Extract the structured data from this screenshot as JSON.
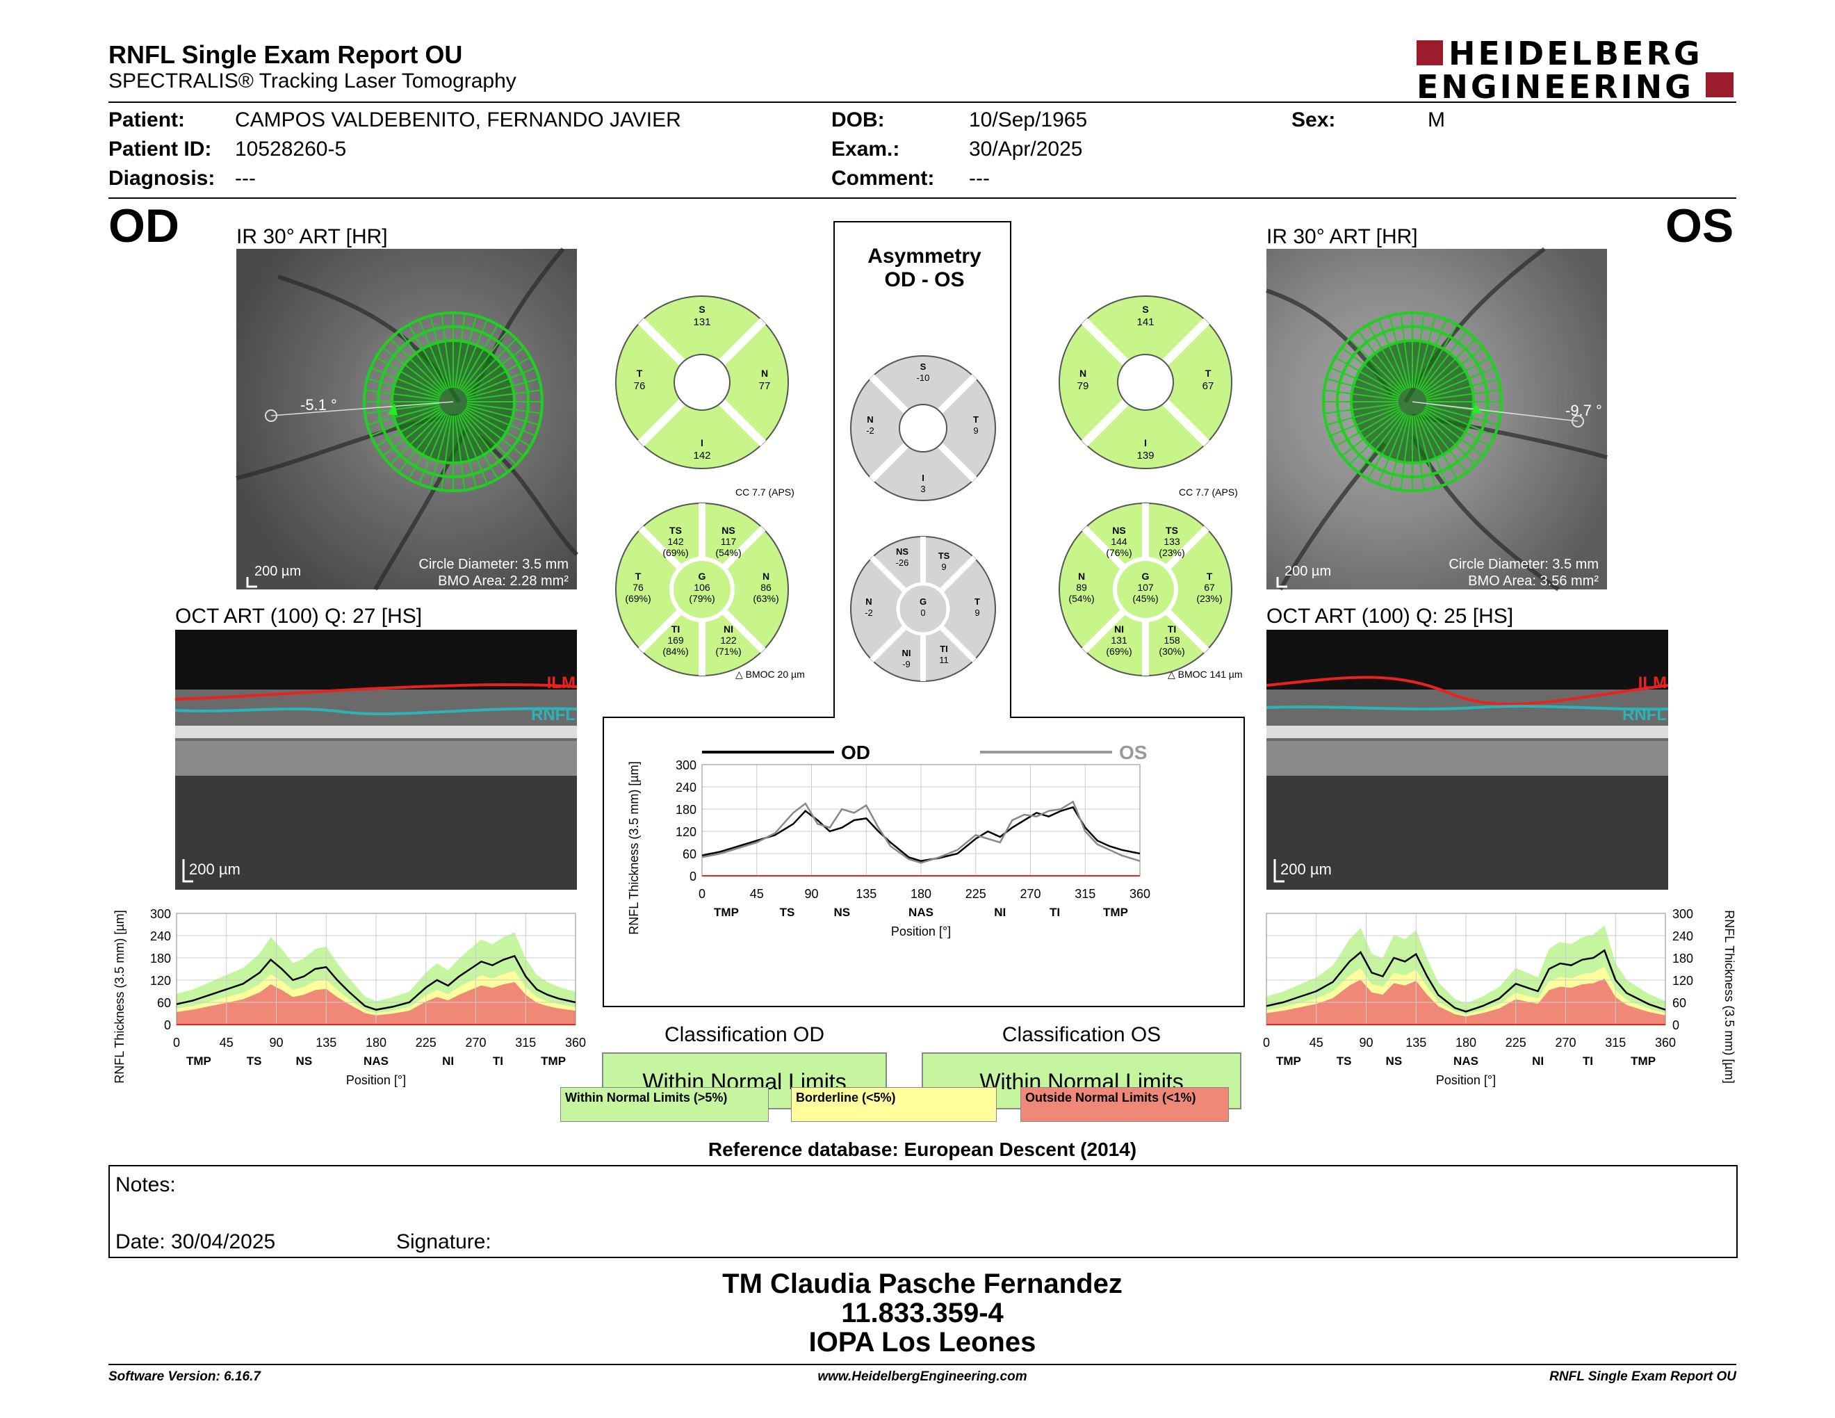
{
  "header": {
    "title": "RNFL Single Exam Report OU",
    "subtitle": "SPECTRALIS® Tracking Laser Tomography",
    "logo_line1": "HEIDELBERG",
    "logo_line2": "ENGINEERING"
  },
  "patient": {
    "patient_label": "Patient:",
    "patient_value": "CAMPOS VALDEBENITO, FERNANDO JAVIER",
    "id_label": "Patient ID:",
    "id_value": "10528260-5",
    "diag_label": "Diagnosis:",
    "diag_value": "---",
    "dob_label": "DOB:",
    "dob_value": "10/Sep/1965",
    "exam_label": "Exam.:",
    "exam_value": "30/Apr/2025",
    "comment_label": "Comment:",
    "comment_value": "---",
    "sex_label": "Sex:",
    "sex_value": "M"
  },
  "od": {
    "eye": "OD",
    "ir_label": "IR 30° ART [HR]",
    "angle": "-5.1 °",
    "scale": "200 µm",
    "circle_diameter": "Circle Diameter: 3.5 mm",
    "bmo_area": "BMO Area: 2.28 mm²",
    "oct_label": "OCT ART (100) Q: 27 [HS]",
    "oct_scale": "200 µm",
    "ilm": "ILM",
    "rnfl": "RNFL",
    "quad": {
      "S": "131",
      "T": "76",
      "N": "77",
      "I": "142"
    },
    "cc": "CC 7.7 (APS)",
    "bmoc": "BMOC 20 µm",
    "sectors": {
      "TS": [
        "TS",
        "142",
        "(69%)"
      ],
      "NS": [
        "NS",
        "117",
        "(54%)"
      ],
      "T": [
        "T",
        "76",
        "(69%)"
      ],
      "G": [
        "G",
        "106",
        "(79%)"
      ],
      "N": [
        "N",
        "86",
        "(63%)"
      ],
      "TI": [
        "TI",
        "169",
        "(84%)"
      ],
      "NI": [
        "NI",
        "122",
        "(71%)"
      ]
    },
    "classification_label": "Classification OD",
    "classification_value": "Within Normal Limits"
  },
  "os": {
    "eye": "OS",
    "ir_label": "IR 30° ART [HR]",
    "angle": "-9.7 °",
    "scale": "200 µm",
    "circle_diameter": "Circle Diameter: 3.5 mm",
    "bmo_area": "BMO Area: 3.56 mm²",
    "oct_label": "OCT ART (100) Q: 25 [HS]",
    "oct_scale": "200 µm",
    "ilm": "ILM",
    "rnfl": "RNFL",
    "quad": {
      "S": "141",
      "N": "79",
      "T": "67",
      "I": "139"
    },
    "cc": "CC 7.7 (APS)",
    "bmoc": "BMOC 141 µm",
    "sectors": {
      "NS": [
        "NS",
        "144",
        "(76%)"
      ],
      "TS": [
        "TS",
        "133",
        "(23%)"
      ],
      "N": [
        "N",
        "89",
        "(54%)"
      ],
      "G": [
        "G",
        "107",
        "(45%)"
      ],
      "T": [
        "T",
        "67",
        "(23%)"
      ],
      "NI": [
        "NI",
        "131",
        "(69%)"
      ],
      "TI": [
        "TI",
        "158",
        "(30%)"
      ]
    },
    "classification_label": "Classification OS",
    "classification_value": "Within Normal Limits"
  },
  "asymmetry": {
    "title1": "Asymmetry",
    "title2": "OD - OS",
    "quad": {
      "S": "-10",
      "N": "-2",
      "T": "9",
      "I": "3"
    },
    "sectors": {
      "NS": [
        "NS",
        "-26"
      ],
      "TS": [
        "TS",
        "9"
      ],
      "N": [
        "N",
        "-2"
      ],
      "G": [
        "G",
        "0"
      ],
      "T": [
        "T",
        "9"
      ],
      "NI": [
        "NI",
        "-9"
      ],
      "TI": [
        "TI",
        "11"
      ]
    }
  },
  "legend": {
    "green": "Within Normal Limits (>5%)",
    "yellow": "Borderline (<5%)",
    "red": "Outside Normal Limits (<1%)"
  },
  "reference": "Reference database: European Descent (2014)",
  "notes": {
    "notes_label": "Notes:",
    "date_label": "Date: 30/04/2025",
    "signature_label": "Signature:"
  },
  "stamp": {
    "line1": "TM Claudia Pasche Fernandez",
    "line2": "11.833.359-4",
    "line3": "IOPA Los Leones"
  },
  "footer": {
    "left": "Software Version: 6.16.7",
    "center": "www.HeidelbergEngineering.com",
    "right": "RNFL Single Exam Report OU"
  },
  "colors": {
    "green": "#c6f5a0",
    "sector_green": "#c8f58a",
    "yellow": "#fefe9c",
    "red": "#f08878",
    "gray": "#d4d4d4",
    "brand": "#9b1c2c"
  },
  "chart_data": [
    {
      "type": "line",
      "id": "combined",
      "title": "",
      "xlabel": "Position [°]",
      "ylabel": "RNFL Thickness (3.5 mm) [µm]",
      "xlim": [
        0,
        360
      ],
      "ylim": [
        0,
        300
      ],
      "xticks": [
        0,
        45,
        90,
        135,
        180,
        225,
        270,
        315,
        360
      ],
      "yticks": [
        0,
        60,
        120,
        180,
        240,
        300
      ],
      "sector_labels": [
        [
          "TMP",
          20
        ],
        [
          "TS",
          70
        ],
        [
          "NS",
          115
        ],
        [
          "NAS",
          180
        ],
        [
          "NI",
          245
        ],
        [
          "TI",
          290
        ],
        [
          "TMP",
          340
        ]
      ],
      "series": [
        {
          "name": "OD",
          "x": [
            0,
            15,
            30,
            45,
            60,
            75,
            85,
            95,
            105,
            115,
            125,
            135,
            145,
            155,
            170,
            180,
            195,
            210,
            225,
            235,
            245,
            255,
            265,
            275,
            285,
            295,
            305,
            315,
            325,
            335,
            345,
            360
          ],
          "y": [
            55,
            65,
            80,
            95,
            110,
            140,
            175,
            150,
            120,
            130,
            150,
            155,
            120,
            90,
            50,
            40,
            48,
            60,
            100,
            120,
            105,
            130,
            150,
            170,
            160,
            175,
            185,
            130,
            95,
            80,
            70,
            60
          ]
        },
        {
          "name": "OS",
          "x": [
            0,
            15,
            30,
            45,
            60,
            75,
            85,
            95,
            105,
            115,
            125,
            135,
            145,
            155,
            170,
            180,
            195,
            210,
            225,
            235,
            245,
            255,
            265,
            275,
            285,
            295,
            305,
            315,
            325,
            335,
            345,
            360
          ],
          "y": [
            50,
            60,
            75,
            90,
            115,
            170,
            195,
            140,
            130,
            180,
            170,
            190,
            130,
            80,
            45,
            35,
            50,
            70,
            110,
            100,
            90,
            150,
            165,
            160,
            175,
            180,
            200,
            120,
            85,
            70,
            55,
            40
          ]
        }
      ],
      "legend_labels": [
        "OD",
        "OS"
      ]
    },
    {
      "type": "line",
      "id": "od_profile",
      "xlabel": "Position [°]",
      "ylabel": "RNFL Thickness (3.5 mm) [µm]",
      "xlim": [
        0,
        360
      ],
      "ylim": [
        0,
        300
      ],
      "xticks": [
        0,
        45,
        90,
        135,
        180,
        225,
        270,
        315,
        360
      ],
      "yticks": [
        0,
        60,
        120,
        180,
        240,
        300
      ],
      "sector_labels": [
        [
          "TMP",
          20
        ],
        [
          "TS",
          70
        ],
        [
          "NS",
          115
        ],
        [
          "NAS",
          180
        ],
        [
          "NI",
          245
        ],
        [
          "TI",
          290
        ],
        [
          "TMP",
          340
        ]
      ],
      "series": [
        {
          "name": "OD",
          "x": [
            0,
            15,
            30,
            45,
            60,
            75,
            85,
            95,
            105,
            115,
            125,
            135,
            145,
            155,
            170,
            180,
            195,
            210,
            225,
            235,
            245,
            255,
            265,
            275,
            285,
            295,
            305,
            315,
            325,
            335,
            345,
            360
          ],
          "y": [
            55,
            65,
            80,
            95,
            110,
            140,
            175,
            150,
            120,
            130,
            150,
            155,
            120,
            90,
            50,
            40,
            48,
            60,
            100,
            120,
            105,
            130,
            150,
            170,
            160,
            175,
            185,
            130,
            95,
            80,
            70,
            60
          ]
        }
      ]
    },
    {
      "type": "line",
      "id": "os_profile",
      "xlabel": "Position [°]",
      "ylabel": "RNFL Thickness (3.5 mm) [µm]",
      "xlim": [
        0,
        360
      ],
      "ylim": [
        0,
        300
      ],
      "xticks": [
        0,
        45,
        90,
        135,
        180,
        225,
        270,
        315,
        360
      ],
      "yticks": [
        0,
        60,
        120,
        180,
        240,
        300
      ],
      "sector_labels": [
        [
          "TMP",
          20
        ],
        [
          "TS",
          70
        ],
        [
          "NS",
          115
        ],
        [
          "NAS",
          180
        ],
        [
          "NI",
          245
        ],
        [
          "TI",
          290
        ],
        [
          "TMP",
          340
        ]
      ],
      "series": [
        {
          "name": "OS",
          "x": [
            0,
            15,
            30,
            45,
            60,
            75,
            85,
            95,
            105,
            115,
            125,
            135,
            145,
            155,
            170,
            180,
            195,
            210,
            225,
            235,
            245,
            255,
            265,
            275,
            285,
            295,
            305,
            315,
            325,
            335,
            345,
            360
          ],
          "y": [
            50,
            60,
            75,
            90,
            115,
            170,
            195,
            140,
            130,
            180,
            170,
            190,
            130,
            80,
            45,
            35,
            50,
            70,
            110,
            100,
            90,
            150,
            165,
            160,
            175,
            180,
            200,
            120,
            85,
            70,
            55,
            40
          ]
        }
      ]
    }
  ]
}
